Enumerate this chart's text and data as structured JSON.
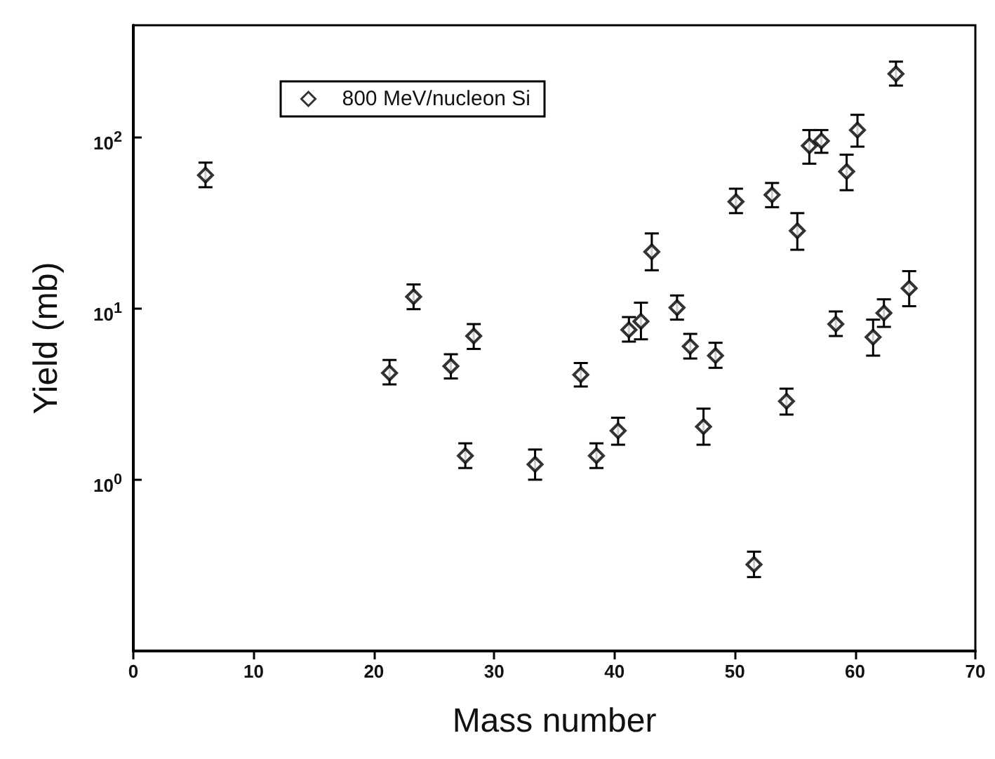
{
  "chart_data": {
    "type": "scatter",
    "xlabel": "Mass number",
    "ylabel": "Yield (mb)",
    "x": [
      6,
      21.3,
      23.3,
      26.4,
      27.6,
      28.3,
      33.4,
      37.2,
      38.5,
      40.3,
      41.2,
      42.2,
      43.1,
      45.2,
      46.3,
      47.4,
      48.4,
      50.1,
      51.6,
      53.1,
      54.3,
      55.2,
      56.2,
      57.2,
      58.4,
      59.3,
      60.2,
      61.5,
      62.4,
      63.4,
      64.5
    ],
    "series": [
      {
        "name": "800 MeV/nucleon Si",
        "color": "#000000",
        "values": [
          60,
          4.2,
          11.7,
          4.6,
          1.38,
          6.9,
          1.23,
          4.1,
          1.38,
          1.93,
          7.5,
          8.4,
          21.4,
          10.1,
          6.0,
          2.04,
          5.3,
          42,
          0.32,
          46,
          2.87,
          28.4,
          89,
          95,
          8.1,
          63,
          110,
          6.8,
          9.4,
          234,
          13.1
        ],
        "errors": [
          [
            51,
            71
          ],
          [
            3.6,
            5.0
          ],
          [
            9.9,
            13.8
          ],
          [
            3.9,
            5.4
          ],
          [
            1.17,
            1.63
          ],
          [
            5.8,
            8.1
          ],
          [
            1.0,
            1.5
          ],
          [
            3.5,
            4.8
          ],
          [
            1.17,
            1.63
          ],
          [
            1.6,
            2.3
          ],
          [
            6.4,
            8.9
          ],
          [
            6.6,
            10.8
          ],
          [
            16.7,
            27.4
          ],
          [
            8.6,
            11.9
          ],
          [
            5.1,
            7.1
          ],
          [
            1.6,
            2.6
          ],
          [
            4.5,
            6.3
          ],
          [
            36,
            50
          ],
          [
            0.27,
            0.38
          ],
          [
            39,
            54
          ],
          [
            2.4,
            3.4
          ],
          [
            22,
            36
          ],
          [
            70,
            110
          ],
          [
            81,
            110
          ],
          [
            6.9,
            9.6
          ],
          [
            49,
            79
          ],
          [
            88,
            135
          ],
          [
            5.3,
            8.6
          ],
          [
            7.8,
            11.3
          ],
          [
            200,
            276
          ],
          [
            10.3,
            16.5
          ]
        ]
      }
    ],
    "xlim": [
      0,
      70
    ],
    "xticks": [
      0,
      10,
      20,
      30,
      40,
      50,
      60,
      70
    ],
    "ylim": [
      0.1,
      450
    ],
    "yticks": [
      {
        "value": 1,
        "label": "10$^{0}$"
      },
      {
        "value": 10,
        "label": "10$^{1}$"
      },
      {
        "value": 100,
        "label": "10$^{2}$"
      }
    ],
    "log": "y",
    "marker": "diamond",
    "legend": "top left",
    "grid": false
  }
}
